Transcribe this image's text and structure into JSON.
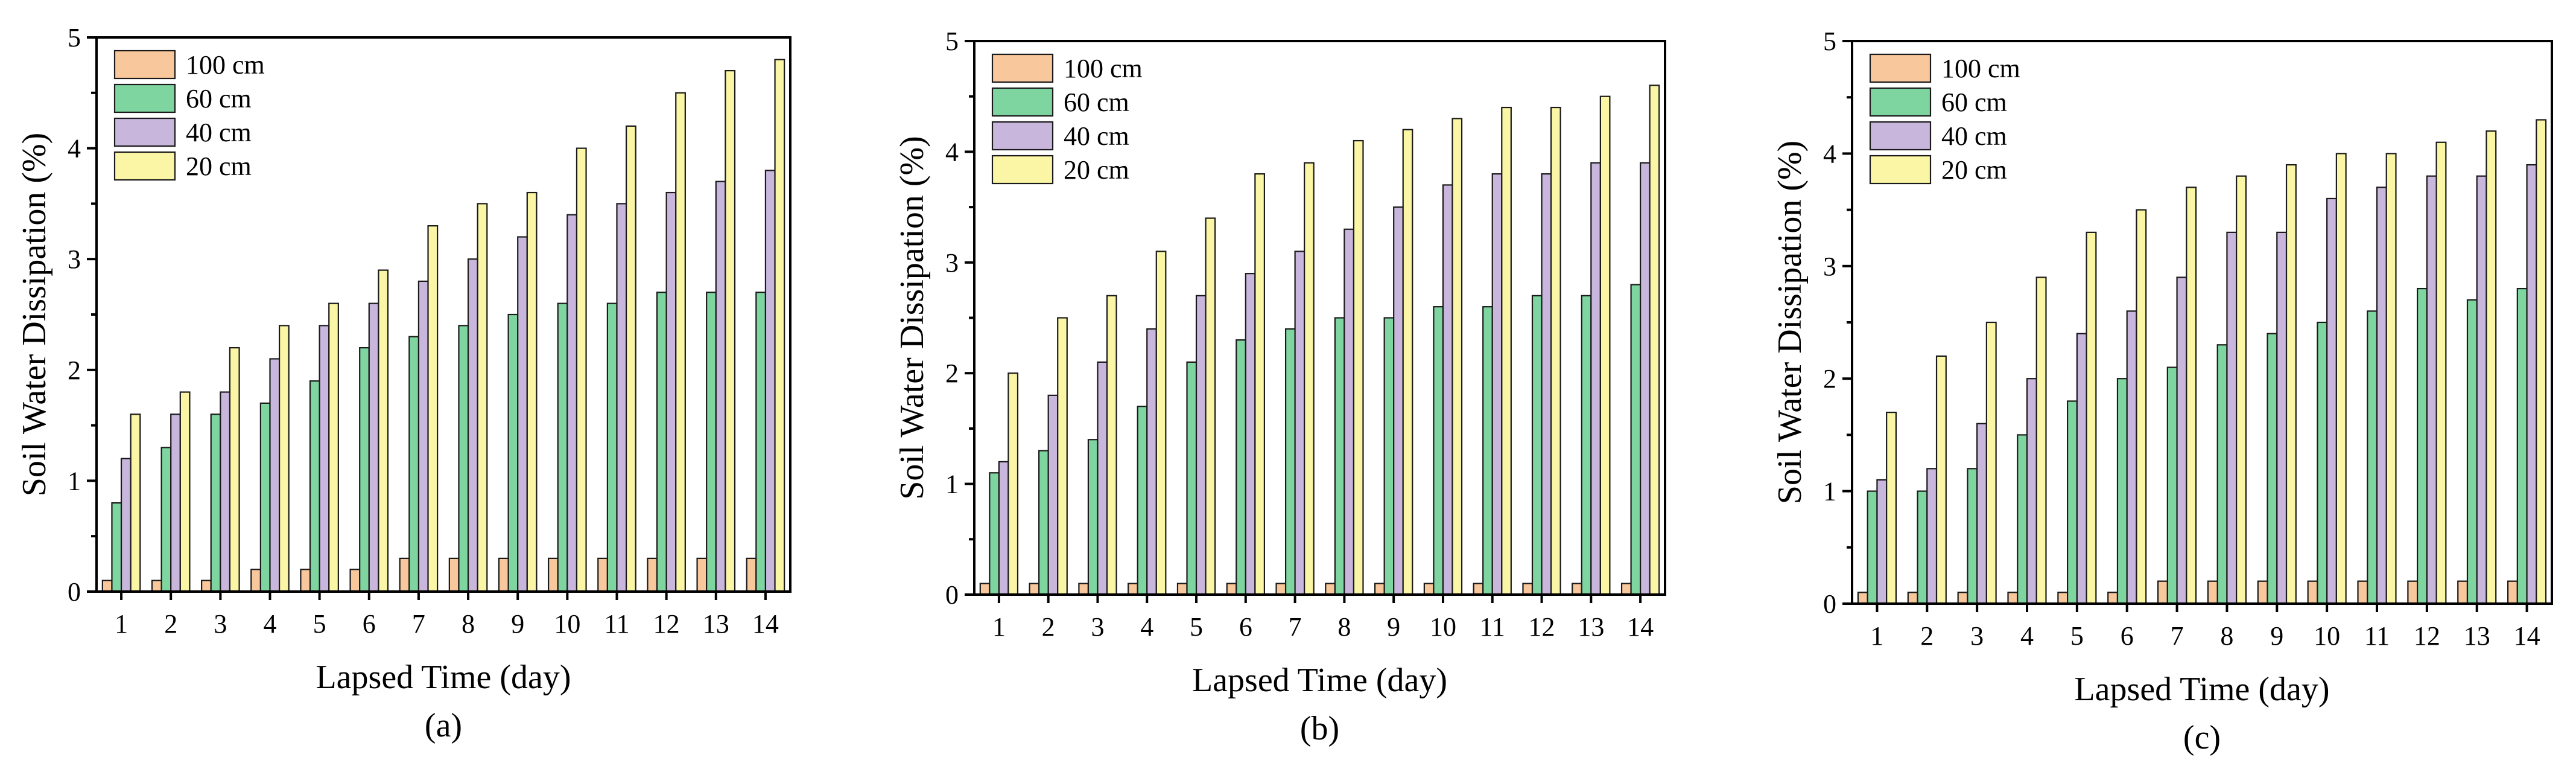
{
  "colors": {
    "100 cm": "#f8c79b",
    "60 cm": "#7ed5a0",
    "40 cm": "#c8b6dd",
    "20 cm": "#fbf6a5"
  },
  "chart_data": [
    {
      "type": "bar",
      "panel_label": "(a)",
      "xlabel": "Lapsed Time (day)",
      "ylabel": "Soil Water Dissipation (%)",
      "ylim": [
        0,
        5
      ],
      "yticks": [
        "0",
        "1",
        "2",
        "3",
        "4",
        "5"
      ],
      "categories": [
        "1",
        "2",
        "3",
        "4",
        "5",
        "6",
        "7",
        "8",
        "9",
        "10",
        "11",
        "12",
        "13",
        "14"
      ],
      "legend_position": "top-left",
      "series": [
        {
          "name": "100 cm",
          "values": [
            0.1,
            0.1,
            0.1,
            0.2,
            0.2,
            0.2,
            0.3,
            0.3,
            0.3,
            0.3,
            0.3,
            0.3,
            0.3,
            0.3
          ]
        },
        {
          "name": "60 cm",
          "values": [
            0.8,
            1.3,
            1.6,
            1.7,
            1.9,
            2.2,
            2.3,
            2.4,
            2.5,
            2.6,
            2.6,
            2.7,
            2.7,
            2.7
          ]
        },
        {
          "name": "40 cm",
          "values": [
            1.2,
            1.6,
            1.8,
            2.1,
            2.4,
            2.6,
            2.8,
            3.0,
            3.2,
            3.4,
            3.5,
            3.6,
            3.7,
            3.8
          ]
        },
        {
          "name": "20 cm",
          "values": [
            1.6,
            1.8,
            2.2,
            2.4,
            2.6,
            2.9,
            3.3,
            3.5,
            3.6,
            4.0,
            4.2,
            4.5,
            4.7,
            4.8
          ]
        }
      ]
    },
    {
      "type": "bar",
      "panel_label": "(b)",
      "xlabel": "Lapsed Time (day)",
      "ylabel": "Soil Water Dissipation (%)",
      "ylim": [
        0,
        5
      ],
      "yticks": [
        "0",
        "1",
        "2",
        "3",
        "4",
        "5"
      ],
      "categories": [
        "1",
        "2",
        "3",
        "4",
        "5",
        "6",
        "7",
        "8",
        "9",
        "10",
        "11",
        "12",
        "13",
        "14"
      ],
      "legend_position": "top-left",
      "series": [
        {
          "name": "100 cm",
          "values": [
            0.1,
            0.1,
            0.1,
            0.1,
            0.1,
            0.1,
            0.1,
            0.1,
            0.1,
            0.1,
            0.1,
            0.1,
            0.1,
            0.1
          ]
        },
        {
          "name": "60 cm",
          "values": [
            1.1,
            1.3,
            1.4,
            1.7,
            2.1,
            2.3,
            2.4,
            2.5,
            2.5,
            2.6,
            2.6,
            2.7,
            2.7,
            2.8
          ]
        },
        {
          "name": "40 cm",
          "values": [
            1.2,
            1.8,
            2.1,
            2.4,
            2.7,
            2.9,
            3.1,
            3.3,
            3.5,
            3.7,
            3.8,
            3.8,
            3.9,
            3.9
          ]
        },
        {
          "name": "20 cm",
          "values": [
            2.0,
            2.5,
            2.7,
            3.1,
            3.4,
            3.8,
            3.9,
            4.1,
            4.2,
            4.3,
            4.4,
            4.4,
            4.5,
            4.6
          ]
        }
      ]
    },
    {
      "type": "bar",
      "panel_label": "(c)",
      "xlabel": "Lapsed Time (day)",
      "ylabel": "Soil Water Dissipation (%)",
      "ylim": [
        0,
        5
      ],
      "yticks": [
        "0",
        "1",
        "2",
        "3",
        "4",
        "5"
      ],
      "categories": [
        "1",
        "2",
        "3",
        "4",
        "5",
        "6",
        "7",
        "8",
        "9",
        "10",
        "11",
        "12",
        "13",
        "14"
      ],
      "legend_position": "top-left",
      "series": [
        {
          "name": "100 cm",
          "values": [
            0.1,
            0.1,
            0.1,
            0.1,
            0.1,
            0.1,
            0.2,
            0.2,
            0.2,
            0.2,
            0.2,
            0.2,
            0.2,
            0.2
          ]
        },
        {
          "name": "60 cm",
          "values": [
            1.0,
            1.0,
            1.2,
            1.5,
            1.8,
            2.0,
            2.1,
            2.3,
            2.4,
            2.5,
            2.6,
            2.8,
            2.7,
            2.8
          ]
        },
        {
          "name": "40 cm",
          "values": [
            1.1,
            1.2,
            1.6,
            2.0,
            2.4,
            2.6,
            2.9,
            3.3,
            3.3,
            3.6,
            3.7,
            3.8,
            3.8,
            3.9
          ]
        },
        {
          "name": "20 cm",
          "values": [
            1.7,
            2.2,
            2.5,
            2.9,
            3.3,
            3.5,
            3.7,
            3.8,
            3.9,
            4.0,
            4.0,
            4.1,
            4.2,
            4.3
          ]
        }
      ]
    }
  ]
}
